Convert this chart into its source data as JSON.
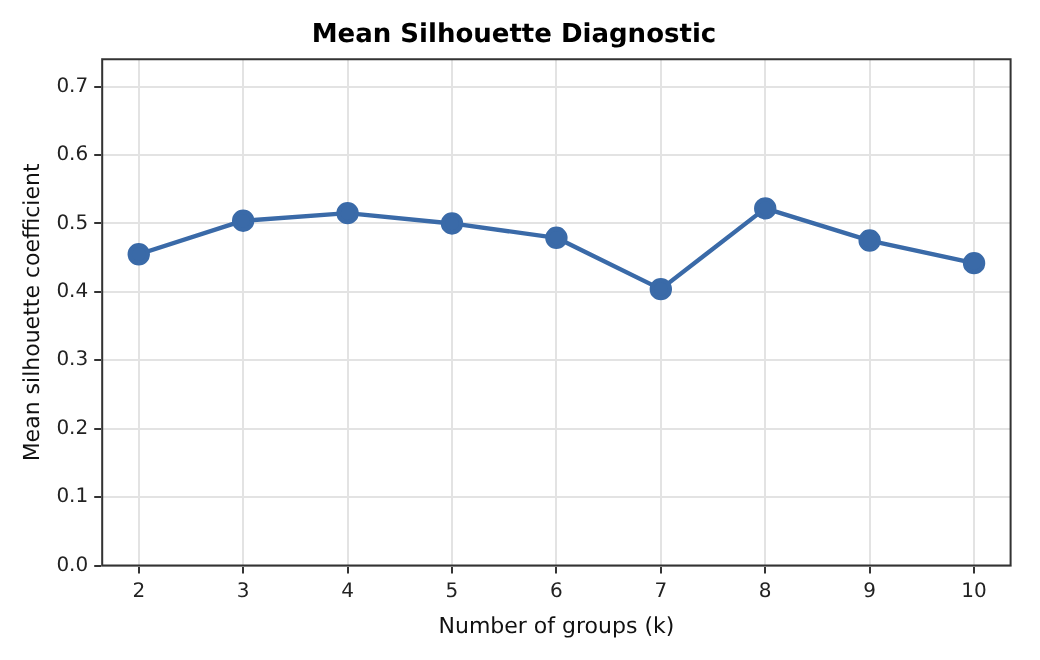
{
  "chart_data": {
    "type": "line",
    "title": "Mean Silhouette Diagnostic",
    "xlabel": "Number of groups (k)",
    "ylabel": "Mean silhouette coefficient",
    "x": [
      2,
      3,
      4,
      5,
      6,
      7,
      8,
      9,
      10
    ],
    "series": [
      {
        "color": "#3a6aa8",
        "values": [
          0.455,
          0.504,
          0.515,
          0.5,
          0.479,
          0.404,
          0.522,
          0.475,
          0.442
        ]
      }
    ],
    "xlim": [
      1.65,
      10.35
    ],
    "xticks": [
      2,
      3,
      4,
      5,
      6,
      7,
      8,
      9,
      10
    ],
    "ylim": [
      0,
      0.74
    ],
    "yticks": [
      {
        "value": 0,
        "label": "0.0"
      },
      0.1,
      0.2,
      0.3,
      0.4,
      0.5,
      0.6,
      0.7
    ],
    "grid": true,
    "legend": false,
    "marker": "circle",
    "line_style": "solid"
  }
}
